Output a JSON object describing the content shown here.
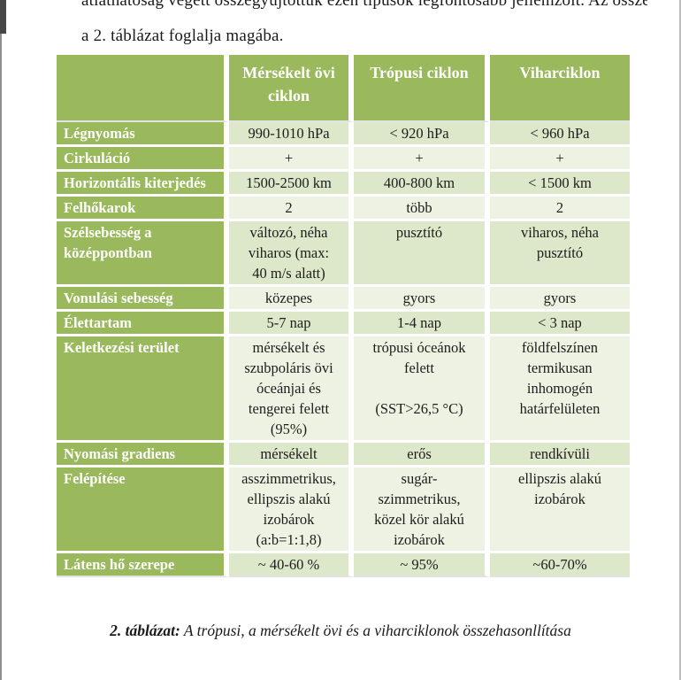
{
  "page": {
    "intro_line_clipped": "átláthatóság végett összegyűjtöttük ezen típusok legfontosabb jellemzőit. Az összehasonlítást",
    "intro_line": "a 2. táblázat foglalja magába.",
    "caption_label": "2. táblázat:",
    "caption_text": " A trópusi, a mérsékelt övi és a viharciklonok összehasonllítása"
  },
  "colors": {
    "table_green": "#9ab85c",
    "row_band_dark": "#dde8ca",
    "row_band_light": "#eef2e3",
    "header_text": "#ffffff",
    "cell_text": "#1d1d1b"
  },
  "table": {
    "columns": [
      "",
      "Mérsékelt övi ciklon",
      "Trópusi ciklon",
      "Viharciklon"
    ],
    "rows": [
      {
        "label": "Légnyomás",
        "values": [
          "990-1010 hPa",
          "< 920 hPa",
          "< 960 hPa"
        ]
      },
      {
        "label": "Cirkuláció",
        "values": [
          "+",
          "+",
          "+"
        ]
      },
      {
        "label": "Horizontális kiterjedés",
        "values": [
          "1500-2500 km",
          "400-800 km",
          "< 1500 km"
        ]
      },
      {
        "label": "Felhőkarok",
        "values": [
          "2",
          "több",
          "2"
        ]
      },
      {
        "label": "Szélsebesség a középpontban",
        "values": [
          "változó, néha\nviharos (max:\n40 m/s alatt)",
          "pusztító",
          "viharos, néha\npusztító"
        ]
      },
      {
        "label": "Vonulási sebesség",
        "values": [
          "közepes",
          "gyors",
          "gyors"
        ]
      },
      {
        "label": "Élettartam",
        "values": [
          "5-7 nap",
          "1-4 nap",
          "< 3 nap"
        ]
      },
      {
        "label": "Keletkezési terület",
        "values": [
          "mérsékelt és\nszubpoláris övi\nóceánjai és\ntengerei felett\n(95%)",
          "trópusi óceánok\nfelett\n\n(SST>26,5 °C)",
          "földfelszínen\ntermikusan\ninhomogén\nhatárfelületen"
        ]
      },
      {
        "label": "Nyomási gradiens",
        "values": [
          "mérsékelt",
          "erős",
          "rendkívüli"
        ]
      },
      {
        "label": "Felépítése",
        "values": [
          "asszimmetrikus,\nellipszis alakú\nizobárok\n(a:b=1:1,8)",
          "sugár-\nszimmetrikus,\nközel kör alakú\nizobárok",
          "ellipszis alakú\nizobárok"
        ]
      },
      {
        "label": "Látens hő szerepe",
        "values": [
          "~ 40-60 %",
          "~ 95%",
          "~60-70%"
        ]
      }
    ]
  }
}
